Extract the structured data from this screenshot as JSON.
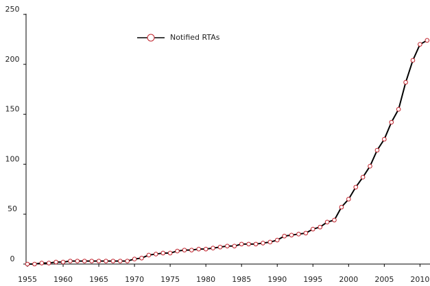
{
  "chart_data": {
    "type": "line",
    "x": [
      1955,
      1956,
      1957,
      1958,
      1959,
      1960,
      1961,
      1962,
      1963,
      1964,
      1965,
      1966,
      1967,
      1968,
      1969,
      1970,
      1971,
      1972,
      1973,
      1974,
      1975,
      1976,
      1977,
      1978,
      1979,
      1980,
      1981,
      1982,
      1983,
      1984,
      1985,
      1986,
      1987,
      1988,
      1989,
      1990,
      1991,
      1992,
      1993,
      1994,
      1995,
      1996,
      1997,
      1998,
      1999,
      2000,
      2001,
      2002,
      2003,
      2004,
      2005,
      2006,
      2007,
      2008,
      2009,
      2010,
      2011
    ],
    "series": [
      {
        "name": "Notified RTAs",
        "color": "#000000",
        "marker_color": "#c0202a",
        "values": [
          0,
          0,
          1,
          1,
          2,
          2,
          3,
          3,
          3,
          3,
          3,
          3,
          3,
          3,
          3,
          5,
          6,
          9,
          10,
          11,
          11,
          13,
          14,
          14,
          15,
          15,
          16,
          17,
          18,
          18,
          20,
          20,
          20,
          21,
          22,
          24,
          28,
          29,
          30,
          31,
          35,
          37,
          42,
          44,
          57,
          65,
          77,
          87,
          98,
          114,
          125,
          142,
          155,
          182,
          204,
          220,
          224
        ]
      }
    ],
    "xlim": [
      1955,
      2011.5
    ],
    "xticks": [
      1955,
      1960,
      1965,
      1970,
      1975,
      1980,
      1985,
      1990,
      1995,
      2000,
      2005,
      2010
    ],
    "ylim": [
      0,
      250
    ],
    "yticks": [
      0,
      50,
      100,
      150,
      200,
      250
    ],
    "legend": "top-left"
  }
}
